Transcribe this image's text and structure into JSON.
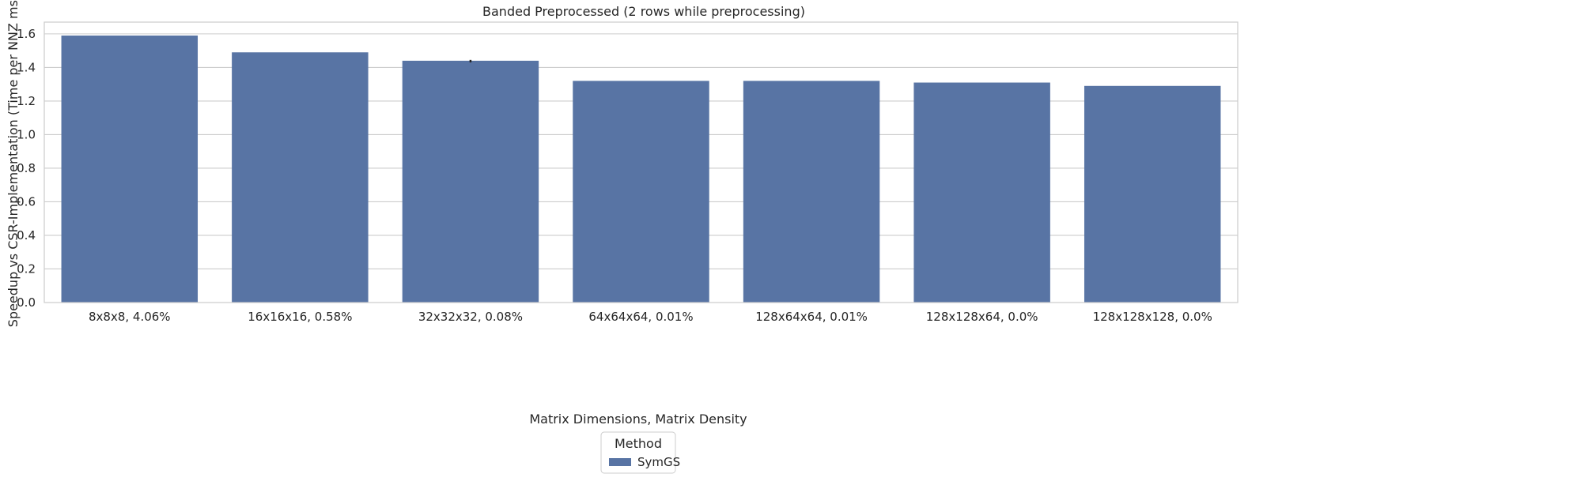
{
  "chart_data": {
    "type": "bar",
    "title": "Banded Preprocessed (2 rows while preprocessing)",
    "xlabel": "Matrix Dimensions, Matrix Density",
    "ylabel": "Speedup vs CSR-Implementation (Time per NNZ ms)",
    "categories": [
      "8x8x8, 4.06%",
      "16x16x16, 0.58%",
      "32x32x32, 0.08%",
      "64x64x64, 0.01%",
      "128x64x64, 0.01%",
      "128x128x64, 0.0%",
      "128x128x128, 0.0%"
    ],
    "series": [
      {
        "name": "SymGS",
        "values": [
          1.59,
          1.49,
          1.44,
          1.32,
          1.32,
          1.31,
          1.29
        ],
        "color": "#5874a4"
      }
    ],
    "error_bars": [
      {
        "category": "32x32x32, 0.08%",
        "low": 1.43,
        "high": 1.445
      }
    ],
    "ylim": [
      0,
      1.67
    ],
    "yticks": [
      0.0,
      0.2,
      0.4,
      0.6,
      0.8,
      1.0,
      1.2,
      1.4,
      1.6
    ],
    "grid": "horizontal",
    "legend": {
      "title": "Method",
      "position": "bottom-center"
    }
  }
}
